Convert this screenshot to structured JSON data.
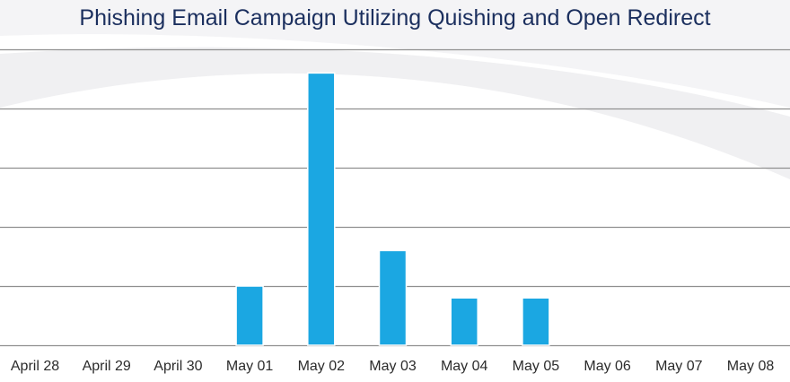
{
  "chart_data": {
    "type": "bar",
    "title": "Phishing Email Campaign Utilizing Quishing and Open Redirect",
    "xlabel": "",
    "ylabel": "",
    "categories": [
      "April 28",
      "April 29",
      "April 30",
      "May 01",
      "May 02",
      "May 03",
      "May 04",
      "May 05",
      "May 06",
      "May 07",
      "May 08"
    ],
    "values": [
      0,
      0,
      0,
      5,
      23,
      8,
      4,
      4,
      0,
      0,
      0
    ],
    "ylim": [
      0,
      25
    ],
    "grid": true,
    "colors": {
      "bar": "#1ba7e2",
      "bar_edge": "#ffffff",
      "gridline": "#8f8f8f",
      "title": "#1b2f5e",
      "background": "#ffffff",
      "background_swoosh": "#f1f1f3"
    }
  }
}
